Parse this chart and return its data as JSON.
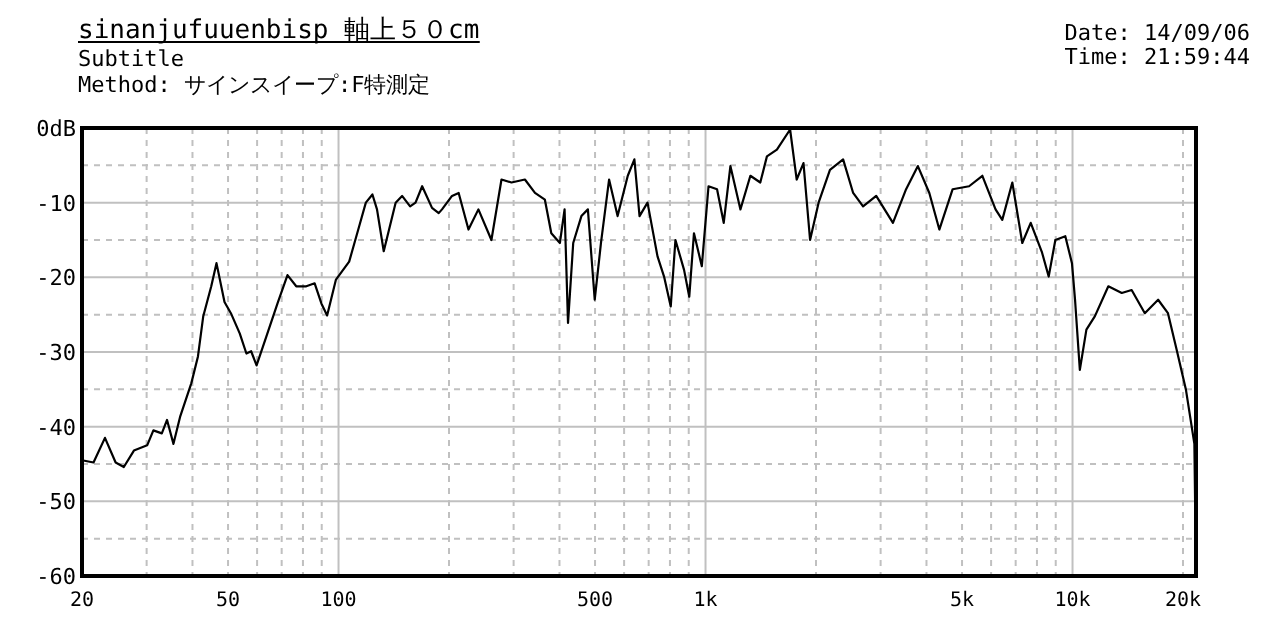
{
  "chart_data": {
    "type": "line",
    "title": "sinanjufuuenbisp 軸上５０cm",
    "subtitle": "Subtitle",
    "annotations": [
      "Method: サインスイープ:F特測定",
      "Date: 14/09/06",
      "Time: 21:59:44"
    ],
    "log": "x",
    "grid": true,
    "marker": "none",
    "line_style": "solid",
    "xlim": [
      20,
      21700
    ],
    "ylim": [
      -60,
      0
    ],
    "xticks": [
      20,
      {
        "value": 30,
        "label": null
      },
      {
        "value": 40,
        "label": null
      },
      50,
      {
        "value": 60,
        "label": null
      },
      {
        "value": 70,
        "label": null
      },
      {
        "value": 80,
        "label": null
      },
      {
        "value": 90,
        "label": null
      },
      100,
      {
        "value": 200,
        "label": null
      },
      {
        "value": 300,
        "label": null
      },
      {
        "value": 400,
        "label": null
      },
      500,
      {
        "value": 600,
        "label": null
      },
      {
        "value": 700,
        "label": null
      },
      {
        "value": 800,
        "label": null
      },
      {
        "value": 900,
        "label": null
      },
      {
        "value": 1000,
        "label": "1k"
      },
      {
        "value": 2000,
        "label": null
      },
      {
        "value": 3000,
        "label": null
      },
      {
        "value": 4000,
        "label": null
      },
      {
        "value": 5000,
        "label": "5k"
      },
      {
        "value": 6000,
        "label": null
      },
      {
        "value": 7000,
        "label": null
      },
      {
        "value": 8000,
        "label": null
      },
      {
        "value": 9000,
        "label": null
      },
      {
        "value": 10000,
        "label": "10k"
      },
      {
        "value": 20000,
        "label": "20k"
      }
    ],
    "yticks": [
      {
        "value": 0,
        "label": "0dB"
      },
      {
        "value": -5,
        "label": null
      },
      -10,
      {
        "value": -15,
        "label": null
      },
      -20,
      {
        "value": -25,
        "label": null
      },
      -30,
      {
        "value": -35,
        "label": null
      },
      -40,
      {
        "value": -45,
        "label": null
      },
      -50,
      {
        "value": -55,
        "label": null
      },
      -60
    ],
    "series": [
      {
        "color": "#000000",
        "x": [
          20,
          21.5,
          23.1,
          24.7,
          26,
          27.7,
          30.1,
          31.3,
          33,
          34.1,
          35.5,
          37,
          39.7,
          41.4,
          42.8,
          45,
          46.5,
          48.9,
          50.9,
          53.8,
          56.1,
          57.8,
          59.8,
          63.6,
          68.2,
          72.6,
          76.7,
          81.7,
          86.1,
          89.8,
          93.1,
          98.4,
          106.9,
          113.8,
          118.7,
          123.7,
          127.3,
          132.8,
          143.1,
          149,
          156.7,
          162.1,
          169,
          179.8,
          187.5,
          191.4,
          203.8,
          212.5,
          226,
          240.5,
          261,
          278,
          296,
          322,
          343,
          365,
          380,
          401,
          413,
          422,
          436,
          459,
          478,
          499,
          519,
          546,
          576,
          614,
          640,
          661,
          695,
          740,
          771,
          804,
          828,
          874,
          903,
          930,
          977,
          1019,
          1075,
          1121,
          1169,
          1245,
          1325,
          1410,
          1470,
          1565,
          1700,
          1772,
          1849,
          1927,
          2033,
          2183,
          2371,
          2525,
          2687,
          2918,
          3241,
          3520,
          3790,
          4072,
          4336,
          4714,
          5226,
          5680,
          6170,
          6436,
          6854,
          7296,
          7693,
          8262,
          8611,
          8979,
          9557,
          9965,
          10160,
          10470,
          10910,
          11510,
          12520,
          13620,
          14490,
          15740,
          17110,
          18200,
          19220,
          20380,
          21480,
          21600
        ],
        "values": [
          -44.5,
          -44.8,
          -41.5,
          -44.8,
          -45.4,
          -43.2,
          -42.5,
          -40.5,
          -40.9,
          -39.1,
          -42.3,
          -38.7,
          -34.2,
          -30.6,
          -25.2,
          -21.2,
          -18.1,
          -23.3,
          -24.8,
          -27.5,
          -30.2,
          -29.9,
          -31.8,
          -27.9,
          -23.5,
          -19.7,
          -21.2,
          -21.2,
          -20.8,
          -23.5,
          -25.1,
          -20.3,
          -17.9,
          -13.2,
          -10,
          -8.9,
          -10.9,
          -16.5,
          -10,
          -9.1,
          -10.5,
          -10,
          -7.8,
          -10.7,
          -11.4,
          -10.9,
          -9.1,
          -8.7,
          -13.6,
          -10.9,
          -15,
          -6.9,
          -7.3,
          -6.9,
          -8.7,
          -9.6,
          -14.1,
          -15.4,
          -10.9,
          -26.1,
          -15.4,
          -11.8,
          -10.9,
          -23,
          -15.4,
          -6.9,
          -11.8,
          -6.4,
          -4.2,
          -11.8,
          -10,
          -17.2,
          -19.9,
          -23.9,
          -15,
          -19,
          -22.6,
          -14.1,
          -18.5,
          -7.8,
          -8.2,
          -12.7,
          -5.1,
          -10.9,
          -6.4,
          -7.3,
          -3.8,
          -2.9,
          -0.2,
          -6.9,
          -4.7,
          -15,
          -10,
          -5.6,
          -4.2,
          -8.7,
          -10.5,
          -9.1,
          -12.7,
          -8.2,
          -5.1,
          -8.7,
          -13.6,
          -8.2,
          -7.8,
          -6.4,
          -10.9,
          -12.3,
          -7.3,
          -15.4,
          -12.7,
          -16.7,
          -19.9,
          -15,
          -14.5,
          -18.1,
          -23,
          -32.4,
          -27,
          -25.2,
          -21.2,
          -22.1,
          -21.7,
          -24.8,
          -23,
          -24.8,
          -29.7,
          -35.1,
          -42.3,
          -51.7
        ]
      }
    ]
  }
}
